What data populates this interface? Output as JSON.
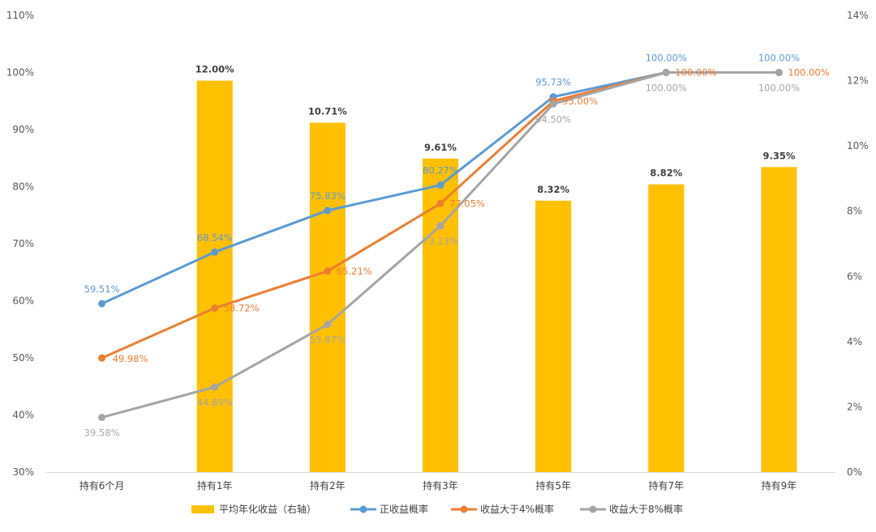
{
  "chart_data": {
    "type": "bar+line",
    "categories": [
      "持有6个月",
      "持有1年",
      "持有2年",
      "持有3年",
      "持有5年",
      "持有7年",
      "持有9年"
    ],
    "left_axis": {
      "min": 0.3,
      "max": 1.1,
      "step": 0.1,
      "tick_labels": [
        "30%",
        "40%",
        "50%",
        "60%",
        "70%",
        "80%",
        "90%",
        "100%",
        "110%"
      ]
    },
    "right_axis": {
      "min": 0.0,
      "max": 0.14,
      "step": 0.02,
      "tick_labels": [
        "0%",
        "2%",
        "4%",
        "6%",
        "8%",
        "10%",
        "12%",
        "14%"
      ]
    },
    "bars": {
      "name": "平均年化收益（右轴）",
      "axis": "right",
      "color": "#FFC000",
      "values": [
        null,
        0.12,
        0.1071,
        0.0961,
        0.0832,
        0.0882,
        0.0935
      ],
      "labels": [
        "",
        "12.00%",
        "10.71%",
        "9.61%",
        "8.32%",
        "8.82%",
        "9.35%"
      ]
    },
    "series": [
      {
        "name": "正收益概率",
        "axis": "left",
        "color": "#5B9BD5",
        "values": [
          0.5951,
          0.6854,
          0.7583,
          0.8027,
          0.9573,
          1.0,
          1.0
        ],
        "labels": [
          "59.51%",
          "68.54%",
          "75.83%",
          "80.27%",
          "95.73%",
          "100.00%",
          "100.00%"
        ]
      },
      {
        "name": "收益大于4%概率",
        "axis": "left",
        "color": "#ED7D31",
        "values": [
          0.4998,
          0.5872,
          0.6521,
          0.7705,
          0.95,
          1.0,
          1.0
        ],
        "labels": [
          "49.98%",
          "58.72%",
          "65.21%",
          "77.05%",
          "95.00%",
          "100.00%",
          "100.00%"
        ]
      },
      {
        "name": "收益大于8%概率",
        "axis": "left",
        "color": "#A5A5A5",
        "values": [
          0.3958,
          0.4489,
          0.5587,
          0.7313,
          0.945,
          1.0,
          1.0
        ],
        "labels": [
          "39.58%",
          "44.89%",
          "55.87%",
          "73.13%",
          "94.50%",
          "100.00%",
          "100.00%"
        ]
      }
    ],
    "legend": {
      "position": "bottom",
      "items": [
        "平均年化收益（右轴）",
        "正收益概率",
        "收益大于4%概率",
        "收益大于8%概率"
      ]
    }
  }
}
